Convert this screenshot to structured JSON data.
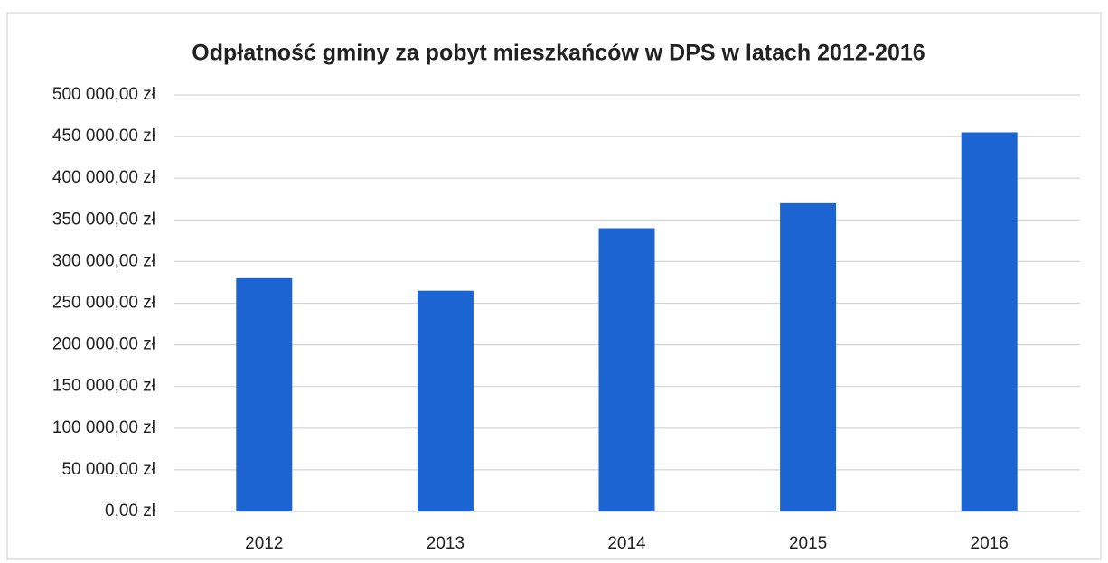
{
  "chart_data": {
    "type": "bar",
    "title": "Odpłatność gminy za pobyt mieszkańców w DPS w latach 2012-2016",
    "categories": [
      "2012",
      "2013",
      "2014",
      "2015",
      "2016"
    ],
    "values": [
      280000,
      265000,
      340000,
      370000,
      455000
    ],
    "color": "#1c64d2",
    "ylim": [
      0,
      500000
    ],
    "yticks": [
      {
        "value": 0,
        "label": "0,00 zł"
      },
      {
        "value": 50000,
        "label": "50 000,00 zł"
      },
      {
        "value": 100000,
        "label": "100 000,00 zł"
      },
      {
        "value": 150000,
        "label": "150 000,00 zł"
      },
      {
        "value": 200000,
        "label": "200 000,00 zł"
      },
      {
        "value": 250000,
        "label": "250 000,00 zł"
      },
      {
        "value": 300000,
        "label": "300 000,00 zł"
      },
      {
        "value": 350000,
        "label": "350 000,00 zł"
      },
      {
        "value": 400000,
        "label": "400 000,00 zł"
      },
      {
        "value": 450000,
        "label": "450 000,00 zł"
      },
      {
        "value": 500000,
        "label": "500 000,00 zł"
      }
    ],
    "grid": true
  }
}
